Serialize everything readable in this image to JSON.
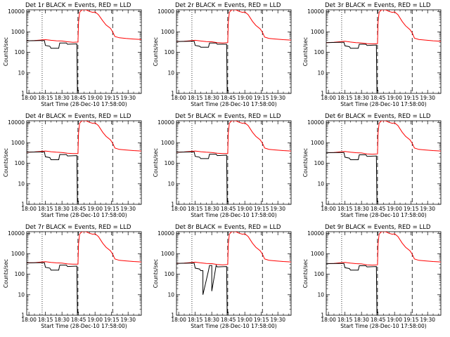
{
  "chart_data": {
    "type": "line",
    "layout_grid": "3x3",
    "y_scale": "log",
    "ylim": [
      1,
      12000
    ],
    "y_ticks": [
      1,
      10,
      100,
      1000,
      10000
    ],
    "y_tick_labels": [
      "1",
      "10",
      "100",
      "1000",
      "10000"
    ],
    "ylabel": "Counts/sec",
    "x_ticks": [
      "18:00",
      "18:15",
      "18:30",
      "18:45",
      "19:00",
      "19:15",
      "19:30"
    ],
    "x_tick_minutes": [
      0,
      15,
      30,
      45,
      60,
      75,
      90
    ],
    "xlim_minutes": [
      -2,
      102
    ],
    "xlabel": "Start Time (28-Dec-10 17:58:00)",
    "colors": {
      "events": "#000000",
      "lld": "#ff0000"
    },
    "vertical_markers": [
      {
        "minute": 12,
        "style": "dotted"
      },
      {
        "minute": 44.5,
        "style": "dashed"
      },
      {
        "minute": 76,
        "style": "dashed"
      }
    ],
    "panels": [
      {
        "title": "Det 1r BLACK = Events, RED = LLD",
        "series": [
          {
            "name": "LLD",
            "color": "#ff0000",
            "x": [
              -2,
              5,
              10,
              15,
              20,
              25,
              30,
              35,
              40,
              44.5,
              45,
              46,
              48,
              52,
              55,
              58,
              60,
              63,
              67,
              70,
              74,
              76,
              78,
              82,
              88,
              95,
              102
            ],
            "y": [
              370,
              380,
              400,
              420,
              390,
              370,
              360,
              330,
              310,
              320,
              3000,
              9000,
              12000,
              12000,
              10000,
              9000,
              9500,
              7000,
              3500,
              2200,
              1500,
              1000,
              600,
              520,
              480,
              450,
              430
            ]
          },
          {
            "name": "Events",
            "color": "#000000",
            "x": [
              -2,
              10,
              14,
              15,
              19,
              20,
              27,
              28,
              34,
              35,
              43.5,
              44
            ],
            "y": [
              370,
              380,
              380,
              220,
              200,
              160,
              160,
              290,
              290,
              250,
              260,
              1
            ]
          }
        ]
      },
      {
        "title": "Det 2r BLACK = Events, RED = LLD",
        "series": [
          {
            "name": "LLD",
            "color": "#ff0000",
            "x": [
              -2,
              5,
              10,
              15,
              20,
              25,
              30,
              35,
              40,
              44.5,
              45,
              46,
              48,
              52,
              55,
              58,
              60,
              63,
              67,
              70,
              74,
              76,
              78,
              82,
              88,
              95,
              102
            ],
            "y": [
              340,
              350,
              370,
              390,
              360,
              340,
              330,
              300,
              290,
              300,
              3000,
              9000,
              12000,
              12000,
              10000,
              9000,
              9500,
              7000,
              3300,
              2100,
              1400,
              950,
              560,
              480,
              450,
              420,
              400
            ]
          },
          {
            "name": "Events",
            "color": "#000000",
            "x": [
              -2,
              10,
              14,
              15,
              19,
              20,
              27,
              28,
              34,
              35,
              43.5,
              44
            ],
            "y": [
              340,
              350,
              350,
              220,
              200,
              180,
              180,
              290,
              290,
              250,
              250,
              1
            ]
          }
        ]
      },
      {
        "title": "Det 3r BLACK = Events, RED = LLD",
        "series": [
          {
            "name": "LLD",
            "color": "#ff0000",
            "x": [
              -2,
              5,
              10,
              15,
              20,
              25,
              30,
              35,
              40,
              44.5,
              45,
              46,
              48,
              52,
              55,
              58,
              60,
              63,
              67,
              70,
              74,
              76,
              78,
              82,
              88,
              95,
              102
            ],
            "y": [
              300,
              310,
              330,
              350,
              320,
              300,
              290,
              270,
              260,
              270,
              3000,
              9000,
              12000,
              12000,
              10000,
              9000,
              9500,
              7000,
              3200,
              2000,
              1300,
              900,
              500,
              430,
              400,
              370,
              350
            ]
          },
          {
            "name": "Events",
            "color": "#000000",
            "x": [
              -2,
              10,
              14,
              15,
              19,
              20,
              27,
              28,
              34,
              35,
              43.5,
              44
            ],
            "y": [
              300,
              310,
              310,
              210,
              190,
              160,
              160,
              250,
              250,
              220,
              230,
              1
            ]
          }
        ]
      },
      {
        "title": "Det 4r BLACK = Events, RED = LLD",
        "series": [
          {
            "name": "LLD",
            "color": "#ff0000",
            "x": [
              -2,
              5,
              10,
              15,
              20,
              25,
              30,
              35,
              40,
              44.5,
              45,
              46,
              48,
              52,
              55,
              58,
              60,
              63,
              67,
              70,
              74,
              76,
              78,
              82,
              88,
              95,
              102
            ],
            "y": [
              350,
              360,
              380,
              400,
              370,
              350,
              340,
              310,
              300,
              300,
              3000,
              9000,
              12000,
              12000,
              10000,
              9000,
              9500,
              7000,
              3300,
              2100,
              1400,
              950,
              560,
              480,
              450,
              420,
              400
            ]
          },
          {
            "name": "Events",
            "color": "#000000",
            "x": [
              -2,
              10,
              14,
              15,
              19,
              20,
              27,
              28,
              34,
              35,
              43.5,
              44
            ],
            "y": [
              350,
              360,
              360,
              210,
              190,
              150,
              150,
              270,
              270,
              230,
              240,
              1
            ]
          }
        ]
      },
      {
        "title": "Det 5r BLACK = Events, RED = LLD",
        "series": [
          {
            "name": "LLD",
            "color": "#ff0000",
            "x": [
              -2,
              5,
              10,
              15,
              20,
              25,
              30,
              35,
              40,
              44.5,
              45,
              46,
              48,
              52,
              55,
              58,
              60,
              63,
              67,
              70,
              74,
              76,
              78,
              82,
              88,
              95,
              102
            ],
            "y": [
              350,
              360,
              380,
              400,
              370,
              350,
              340,
              310,
              300,
              300,
              3000,
              9000,
              12000,
              12000,
              10000,
              9000,
              9500,
              7000,
              3300,
              2100,
              1400,
              950,
              560,
              480,
              450,
              420,
              400
            ]
          },
          {
            "name": "Events",
            "color": "#000000",
            "x": [
              -2,
              10,
              14,
              15,
              19,
              20,
              27,
              28,
              34,
              35,
              43.5,
              44
            ],
            "y": [
              350,
              360,
              360,
              220,
              200,
              170,
              170,
              280,
              280,
              240,
              250,
              1
            ]
          }
        ]
      },
      {
        "title": "Det 6r BLACK = Events, RED = LLD",
        "series": [
          {
            "name": "LLD",
            "color": "#ff0000",
            "x": [
              -2,
              5,
              10,
              15,
              20,
              25,
              30,
              35,
              40,
              44.5,
              45,
              46,
              48,
              52,
              55,
              58,
              60,
              63,
              67,
              70,
              74,
              76,
              78,
              82,
              88,
              95,
              102
            ],
            "y": [
              330,
              340,
              360,
              380,
              350,
              330,
              320,
              290,
              280,
              290,
              3000,
              9000,
              12000,
              12000,
              10000,
              9000,
              9500,
              7000,
              3300,
              2100,
              1400,
              950,
              560,
              480,
              450,
              420,
              400
            ]
          },
          {
            "name": "Events",
            "color": "#000000",
            "x": [
              -2,
              10,
              14,
              15,
              19,
              20,
              27,
              28,
              34,
              35,
              43.5,
              44
            ],
            "y": [
              330,
              340,
              340,
              200,
              180,
              150,
              150,
              260,
              260,
              220,
              230,
              1
            ]
          }
        ]
      },
      {
        "title": "Det 7r BLACK = Events, RED = LLD",
        "series": [
          {
            "name": "LLD",
            "color": "#ff0000",
            "x": [
              -2,
              5,
              10,
              15,
              20,
              25,
              30,
              35,
              40,
              44.5,
              45,
              46,
              48,
              52,
              55,
              58,
              60,
              63,
              67,
              70,
              74,
              76,
              78,
              82,
              88,
              95,
              102
            ],
            "y": [
              360,
              370,
              390,
              410,
              380,
              360,
              350,
              320,
              310,
              310,
              3000,
              9000,
              12000,
              12000,
              10000,
              9000,
              9500,
              7000,
              3300,
              2100,
              1400,
              950,
              560,
              480,
              450,
              420,
              400
            ]
          },
          {
            "name": "Events",
            "color": "#000000",
            "x": [
              -2,
              10,
              14,
              15,
              19,
              20,
              27,
              28,
              34,
              35,
              43.5,
              44
            ],
            "y": [
              360,
              370,
              370,
              220,
              200,
              160,
              160,
              280,
              280,
              240,
              250,
              1
            ]
          }
        ]
      },
      {
        "title": "Det 8r BLACK = Events, RED = LLD",
        "series": [
          {
            "name": "LLD",
            "color": "#ff0000",
            "x": [
              -2,
              5,
              10,
              15,
              20,
              25,
              30,
              35,
              40,
              44.5,
              45,
              46,
              48,
              52,
              55,
              58,
              60,
              63,
              67,
              70,
              74,
              76,
              78,
              82,
              88,
              95,
              102
            ],
            "y": [
              340,
              350,
              370,
              390,
              360,
              340,
              330,
              300,
              290,
              300,
              3000,
              9000,
              12000,
              12000,
              10000,
              9000,
              9500,
              7000,
              3300,
              2100,
              1400,
              950,
              560,
              480,
              450,
              420,
              400
            ]
          },
          {
            "name": "Events",
            "color": "#000000",
            "x": [
              -2,
              10,
              14,
              15,
              19,
              20,
              22,
              22,
              27,
              28,
              30,
              30,
              34,
              35,
              43.5,
              44
            ],
            "y": [
              340,
              350,
              350,
              200,
              180,
              150,
              150,
              10,
              150,
              270,
              270,
              15,
              270,
              230,
              240,
              1
            ]
          }
        ]
      },
      {
        "title": "Det 9r BLACK = Events, RED = LLD",
        "series": [
          {
            "name": "LLD",
            "color": "#ff0000",
            "x": [
              -2,
              5,
              10,
              15,
              20,
              25,
              30,
              35,
              40,
              44.5,
              45,
              46,
              48,
              52,
              55,
              58,
              60,
              63,
              67,
              70,
              74,
              76,
              78,
              82,
              88,
              95,
              102
            ],
            "y": [
              330,
              340,
              360,
              380,
              350,
              330,
              320,
              290,
              280,
              290,
              3000,
              9000,
              12000,
              12000,
              10000,
              9000,
              9500,
              7000,
              3300,
              2100,
              1400,
              950,
              560,
              480,
              450,
              420,
              400
            ]
          },
          {
            "name": "Events",
            "color": "#000000",
            "x": [
              -2,
              10,
              14,
              15,
              19,
              20,
              27,
              28,
              34,
              35,
              43.5,
              44
            ],
            "y": [
              330,
              340,
              340,
              210,
              190,
              160,
              160,
              260,
              260,
              230,
              240,
              1
            ]
          }
        ]
      }
    ]
  }
}
